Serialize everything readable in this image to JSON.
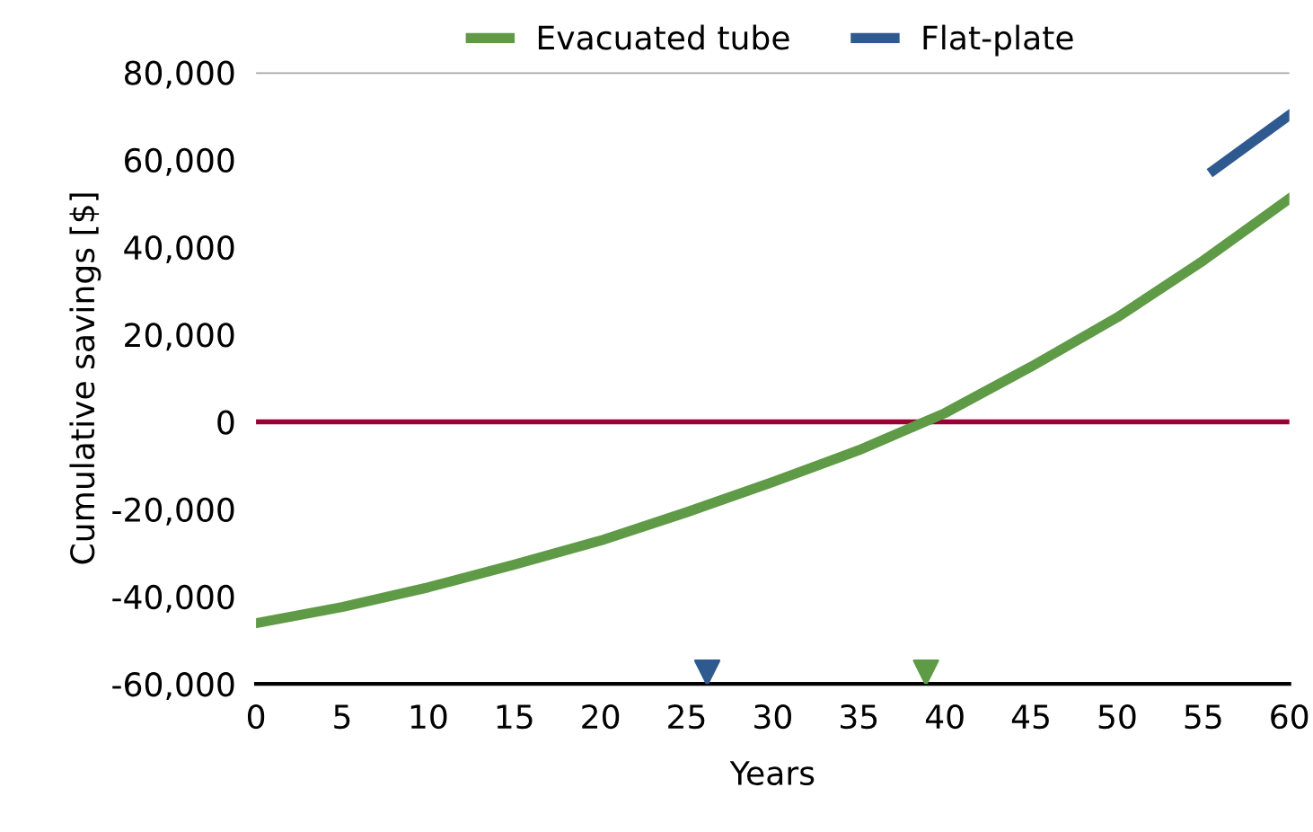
{
  "chart_data": {
    "type": "line",
    "xlabel": "Years",
    "ylabel": "Cumulative savings [$]",
    "xlim": [
      0,
      60
    ],
    "xticks": [
      0,
      5,
      10,
      15,
      20,
      25,
      30,
      35,
      40,
      45,
      50,
      55,
      60
    ],
    "ylim": [
      -60000,
      80000
    ],
    "yticks": [
      {
        "value": -60000,
        "label": "-60,000"
      },
      {
        "value": -40000,
        "label": "-40,000"
      },
      {
        "value": -20000,
        "label": "-20,000"
      },
      {
        "value": 0,
        "label": "0"
      },
      {
        "value": 20000,
        "label": "20,000"
      },
      {
        "value": 40000,
        "label": "40,000"
      },
      {
        "value": 60000,
        "label": "60,000"
      },
      {
        "value": 80000,
        "label": "80,000"
      }
    ],
    "legend": "top",
    "grid": false,
    "series": [
      {
        "name": "Evacuated tube",
        "color": "#5f9b46",
        "x": [
          0,
          5,
          10,
          15,
          20,
          25,
          30,
          35,
          40,
          45,
          50,
          55,
          60
        ],
        "values": [
          -46100,
          -42400,
          -37900,
          -32700,
          -27200,
          -20700,
          -13800,
          -6500,
          2000,
          12600,
          23900,
          36900,
          51100
        ]
      },
      {
        "name": "Flat-plate",
        "color": "#2f5a8f",
        "x": [
          55.6,
          60
        ],
        "values": [
          57600,
          70200
        ]
      },
      {
        "type": "scatter",
        "marker": "triangle",
        "color": "#2f5a8f",
        "x": [
          26.2
        ],
        "values": [
          -57400
        ]
      },
      {
        "type": "scatter",
        "marker": "triangle",
        "color": "#5f9b46",
        "x": [
          38.9
        ],
        "values": [
          -57400
        ]
      }
    ],
    "ref_lines": [
      {
        "axis": "y",
        "value": 0,
        "color": "#990033"
      },
      {
        "axis": "y",
        "value": 80000,
        "color": "#a6a6a6"
      }
    ]
  }
}
